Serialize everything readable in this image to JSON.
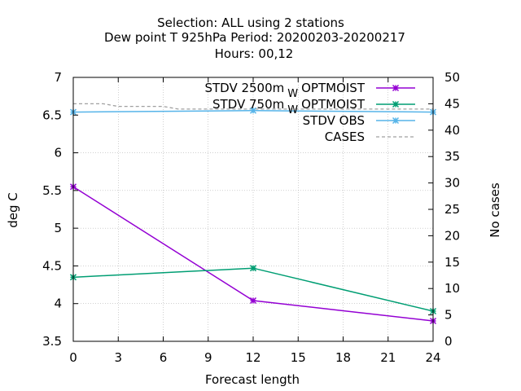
{
  "chart_data": {
    "type": "line",
    "title_lines": [
      "Selection: ALL using     2 stations",
      "Dew point T 925hPa   Period: 20200203-20200217",
      "Hours:  00,12"
    ],
    "xlabel": "Forecast length",
    "ylabel": "deg C",
    "y2label": "No cases",
    "xlim": [
      0,
      24
    ],
    "ylim": [
      3.5,
      7
    ],
    "y2lim": [
      0,
      50
    ],
    "xticks": [
      "0",
      "3",
      "6",
      "9",
      "12",
      "15",
      "18",
      "21",
      "24"
    ],
    "yticks": [
      "3.5",
      "4",
      "4.5",
      "5",
      "5.5",
      "6",
      "6.5",
      "7"
    ],
    "y2ticks": [
      "0",
      "5",
      "10",
      "15",
      "20",
      "25",
      "30",
      "35",
      "40",
      "45",
      "50"
    ],
    "grid": true,
    "legend_position": "top-right",
    "series": [
      {
        "name": "STDV 2500m",
        "name_suffix": "OPTMOIST",
        "name_sub": "W",
        "color": "#9400D3",
        "marker": "x-star",
        "axis": "y",
        "x": [
          0,
          12,
          24
        ],
        "y": [
          5.55,
          4.04,
          3.77
        ]
      },
      {
        "name": "STDV 750m",
        "name_suffix": "OPTMOIST",
        "name_sub": "W",
        "color": "#009E73",
        "marker": "x-star",
        "axis": "y",
        "x": [
          0,
          12,
          24
        ],
        "y": [
          4.35,
          4.47,
          3.9
        ]
      },
      {
        "name": "STDV OBS",
        "color": "#56B4E9",
        "marker": "x-star",
        "axis": "y",
        "x": [
          0,
          12,
          24
        ],
        "y": [
          6.54,
          6.56,
          6.54
        ]
      },
      {
        "name": "CASES",
        "color": "#A0A0A0",
        "dashed": true,
        "axis": "y2",
        "x": [
          0,
          1,
          2,
          3,
          4,
          5,
          6,
          7,
          8,
          9,
          10,
          11,
          12,
          13,
          14,
          15,
          16,
          17,
          18,
          19,
          20,
          21,
          22,
          23,
          24
        ],
        "y": [
          45,
          45,
          45,
          44.5,
          44.5,
          44.5,
          44.5,
          44,
          44,
          44,
          44,
          44,
          44,
          44,
          44,
          44,
          44,
          44,
          44,
          44,
          44,
          44,
          44,
          44,
          44
        ]
      }
    ]
  }
}
